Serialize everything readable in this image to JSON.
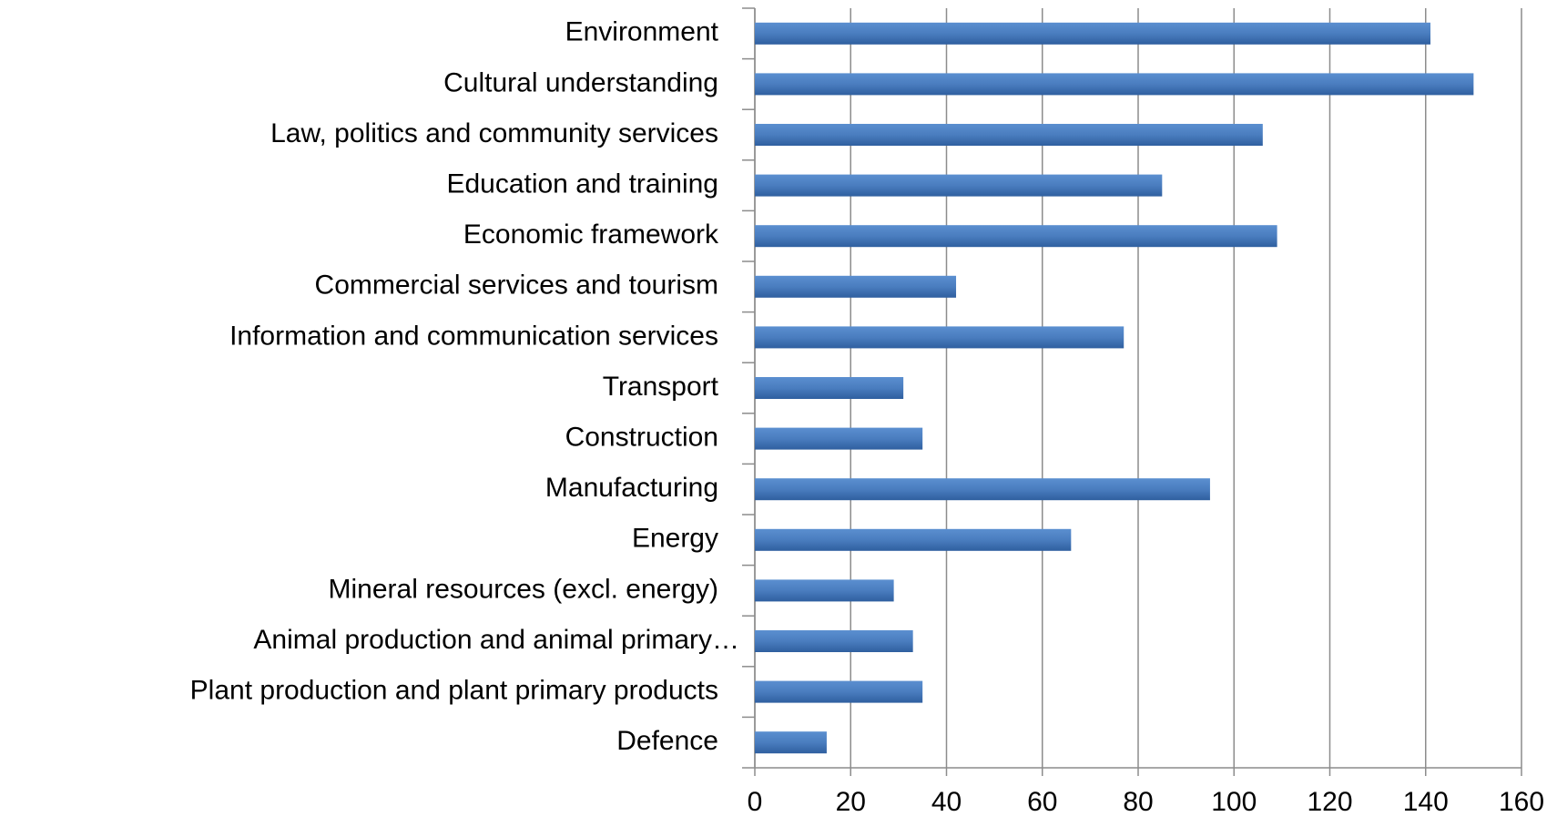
{
  "chart_data": {
    "type": "barh",
    "categories": [
      "Environment",
      "Cultural understanding",
      "Law, politics and community services",
      "Education and training",
      "Economic framework",
      "Commercial services and tourism",
      "Information and communication services",
      "Transport",
      "Construction",
      "Manufacturing",
      "Energy",
      "Mineral resources (excl. energy)",
      "Animal production and animal primary…",
      "Plant production and plant primary products",
      "Defence"
    ],
    "values": [
      141,
      150,
      106,
      85,
      109,
      42,
      77,
      31,
      35,
      95,
      66,
      29,
      33,
      35,
      15
    ],
    "color": "#4a7dbf",
    "xlim": [
      0,
      160
    ],
    "xticks": [
      0,
      20,
      40,
      60,
      80,
      100,
      120,
      140,
      160
    ],
    "grid": true
  }
}
